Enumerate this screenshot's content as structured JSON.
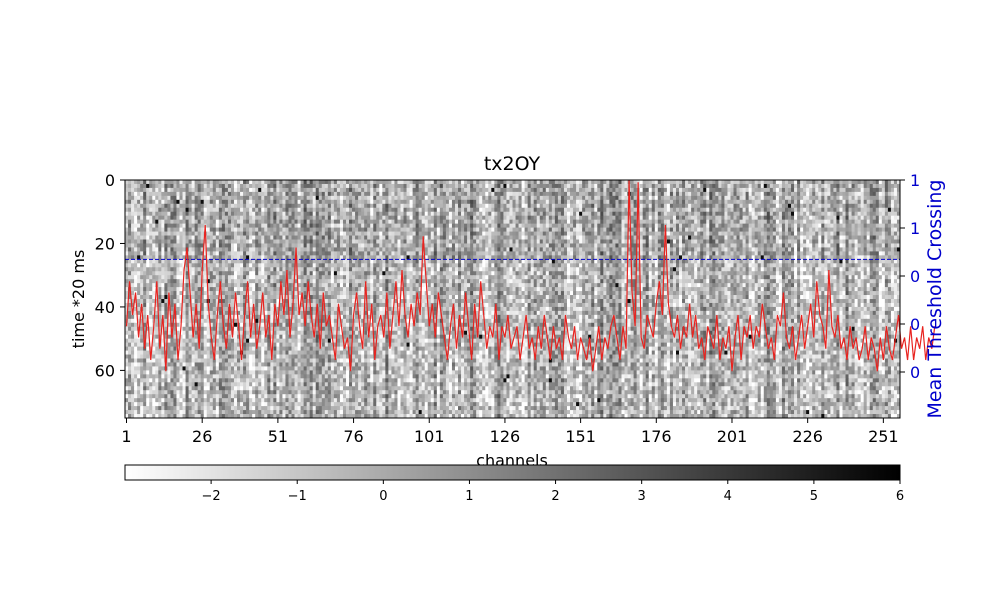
{
  "chart_data": {
    "type": "heatmap",
    "title": "tx2OY",
    "xlabel": "channels",
    "ylabel": "time *20 ms",
    "y2label": "Mean Threshold Crossing",
    "x_range": [
      1,
      256
    ],
    "y_range": [
      0,
      75
    ],
    "x_ticks": [
      "1",
      "26",
      "51",
      "76",
      "101",
      "126",
      "151",
      "176",
      "201",
      "226",
      "251"
    ],
    "y_ticks": [
      "0",
      "20",
      "40",
      "60"
    ],
    "y2_ticks": [
      "1",
      "1",
      "0",
      "0",
      "0"
    ],
    "colormap": "gray_r",
    "colorbar": {
      "range": [
        -3,
        6
      ],
      "ticks": [
        "−2",
        "−1",
        "0",
        "1",
        "2",
        "3",
        "4",
        "5",
        "6"
      ]
    },
    "threshold_line": {
      "time": 25,
      "style": "dashed",
      "color": "#0000cc"
    },
    "mean_crossing_series": {
      "color": "#e8231f",
      "values": [
        0.35,
        0.55,
        0.4,
        0.5,
        0.3,
        0.45,
        0.25,
        0.4,
        0.2,
        0.35,
        0.55,
        0.25,
        0.4,
        0.15,
        0.5,
        0.3,
        0.45,
        0.2,
        0.35,
        0.6,
        0.7,
        0.5,
        0.3,
        0.45,
        0.25,
        0.6,
        0.8,
        0.45,
        0.3,
        0.2,
        0.4,
        0.55,
        0.35,
        0.25,
        0.45,
        0.3,
        0.5,
        0.35,
        0.2,
        0.4,
        0.55,
        0.3,
        0.45,
        0.25,
        0.35,
        0.5,
        0.3,
        0.4,
        0.2,
        0.45,
        0.35,
        0.55,
        0.4,
        0.6,
        0.3,
        0.45,
        0.7,
        0.4,
        0.5,
        0.35,
        0.55,
        0.4,
        0.3,
        0.45,
        0.25,
        0.5,
        0.35,
        0.4,
        0.3,
        0.2,
        0.45,
        0.35,
        0.25,
        0.3,
        0.15,
        0.4,
        0.5,
        0.35,
        0.25,
        0.55,
        0.3,
        0.45,
        0.2,
        0.35,
        0.4,
        0.3,
        0.5,
        0.25,
        0.4,
        0.55,
        0.35,
        0.6,
        0.4,
        0.3,
        0.45,
        0.35,
        0.5,
        0.4,
        0.75,
        0.55,
        0.35,
        0.45,
        0.3,
        0.5,
        0.4,
        0.3,
        0.2,
        0.35,
        0.45,
        0.25,
        0.4,
        0.3,
        0.5,
        0.35,
        0.2,
        0.45,
        0.3,
        0.55,
        0.4,
        0.25,
        0.35,
        0.3,
        0.45,
        0.2,
        0.35,
        0.3,
        0.4,
        0.25,
        0.3,
        0.35,
        0.2,
        0.3,
        0.4,
        0.25,
        0.3,
        0.2,
        0.35,
        0.25,
        0.4,
        0.3,
        0.2,
        0.35,
        0.25,
        0.3,
        0.2,
        0.4,
        0.3,
        0.25,
        0.35,
        0.2,
        0.3,
        0.25,
        0.2,
        0.3,
        0.15,
        0.25,
        0.35,
        0.2,
        0.3,
        0.25,
        0.35,
        0.4,
        0.3,
        0.2,
        0.35,
        0.25,
        1.0,
        0.5,
        0.35,
        0.99,
        0.3,
        0.25,
        0.4,
        0.35,
        0.3,
        0.45,
        0.55,
        0.4,
        0.8,
        0.45,
        0.35,
        0.3,
        0.4,
        0.25,
        0.35,
        0.3,
        0.45,
        0.3,
        0.4,
        0.25,
        0.3,
        0.2,
        0.35,
        0.3,
        0.25,
        0.4,
        0.2,
        0.3,
        0.25,
        0.35,
        0.15,
        0.3,
        0.4,
        0.2,
        0.35,
        0.3,
        0.4,
        0.25,
        0.35,
        0.3,
        0.45,
        0.35,
        0.25,
        0.3,
        0.2,
        0.4,
        0.35,
        0.5,
        0.3,
        0.25,
        0.35,
        0.2,
        0.3,
        0.4,
        0.25,
        0.35,
        0.45,
        0.3,
        0.55,
        0.4,
        0.35,
        0.25,
        0.6,
        0.35,
        0.3,
        0.4,
        0.25,
        0.3,
        0.2,
        0.35,
        0.25,
        0.3,
        0.2,
        0.25,
        0.35,
        0.2,
        0.3,
        0.25,
        0.15,
        0.3,
        0.2,
        0.35,
        0.25,
        0.2,
        0.3,
        0.4,
        0.25,
        0.3,
        0.2,
        0.35,
        0.2,
        0.3,
        0.25,
        0.35,
        0.2,
        0.3,
        0.25,
        0.35
      ]
    }
  }
}
